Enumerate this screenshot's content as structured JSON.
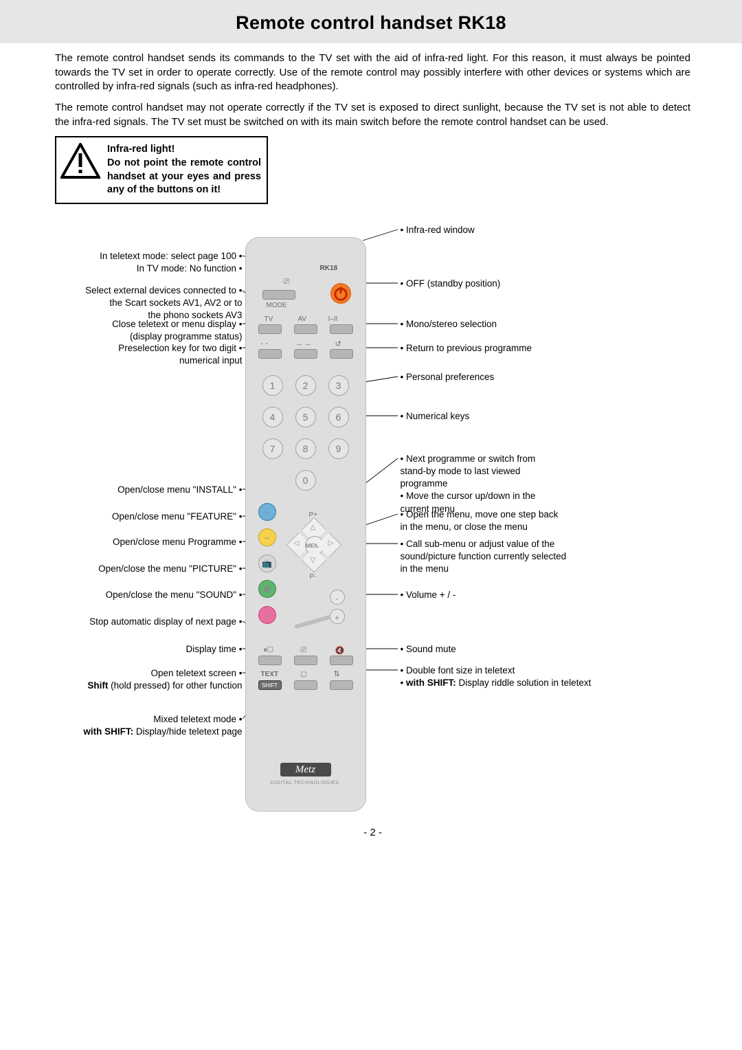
{
  "title": "Remote control handset RK18",
  "para1": "The remote control handset sends its commands to the TV set with the aid of infra-red light. For this reason, it must always be pointed towards the TV set in order to operate correctly. Use of the remote control may possibly interfere with other devices or systems which are controlled by infra-red signals (such as infra-red headphones).",
  "para2": "The remote control handset may not operate correctly if the TV set is exposed to direct sunlight, because the TV set is not able to detect the infra-red signals. The TV set must be switched on with its main switch before the remote control handset can be used.",
  "warn_line1": "Infra-red light!",
  "warn_line2": "Do not point the remote control handset at your eyes and press any of the buttons on it!",
  "remote_model": "RK18",
  "remote_mode": "MODE",
  "remote_tv": "TV",
  "remote_av": "AV",
  "remote_iii": "I–II",
  "remote_menu": "MENU",
  "remote_pplus": "P+",
  "remote_pminus": "P-",
  "remote_text": "TEXT",
  "remote_shift": "SHIFT",
  "remote_brand_sub": "DIGITAL TECHNOLOGIES",
  "num0": "0",
  "num1": "1",
  "num2": "2",
  "num3": "3",
  "num4": "4",
  "num5": "5",
  "num6": "6",
  "num7": "7",
  "num8": "8",
  "num9": "9",
  "left": {
    "l1": "In teletext mode: select page 100 •",
    "l1b": "In TV mode: No function •",
    "l2": "Select external devices connected to •",
    "l2b": "the Scart sockets AV1, AV2 or to",
    "l2c": "the phono sockets AV3",
    "l3": "Close teletext or menu display •",
    "l3b": "(display programme status)",
    "l4": "Preselection key for two digit •",
    "l4b": "numerical input",
    "l5": "Open/close menu \"INSTALL\" •",
    "l6": "Open/close menu \"FEATURE\" •",
    "l7": "Open/close menu Programme •",
    "l8": "Open/close the menu \"PICTURE\" •",
    "l9": "Open/close the menu \"SOUND\" •",
    "l10": "Stop automatic display of next page •",
    "l11": "Display time •",
    "l12": "Open teletext screen •",
    "l12b_html": "<b>Shift</b> (hold pressed) for other function",
    "l13": "Mixed teletext mode •",
    "l13b_html": "<b>with SHIFT:</b> Display/hide teletext page"
  },
  "right": {
    "r1": "• Infra-red window",
    "r2": "• OFF (standby position)",
    "r3": "• Mono/stereo selection",
    "r4": "• Return to previous programme",
    "r5": "• Personal preferences",
    "r6": "• Numerical keys",
    "r7": "• Next programme or switch from",
    "r7b": "  stand-by mode to last viewed",
    "r7c": "  programme",
    "r7d": "• Move the cursor up/down in the",
    "r7e": "  current menu",
    "r8": "• Open the menu, move one step back",
    "r8b": "  in the menu, or close the menu",
    "r9": "• Call sub-menu or adjust value of the",
    "r9b": "  sound/picture function currently selected",
    "r9c": "  in the menu",
    "r10": "• Volume + / -",
    "r11": "• Sound mute",
    "r12": "• Double font size in teletext",
    "r12b_html": "• <b>with SHIFT:</b> Display riddle solution in teletext"
  },
  "page_number": "- 2 -"
}
